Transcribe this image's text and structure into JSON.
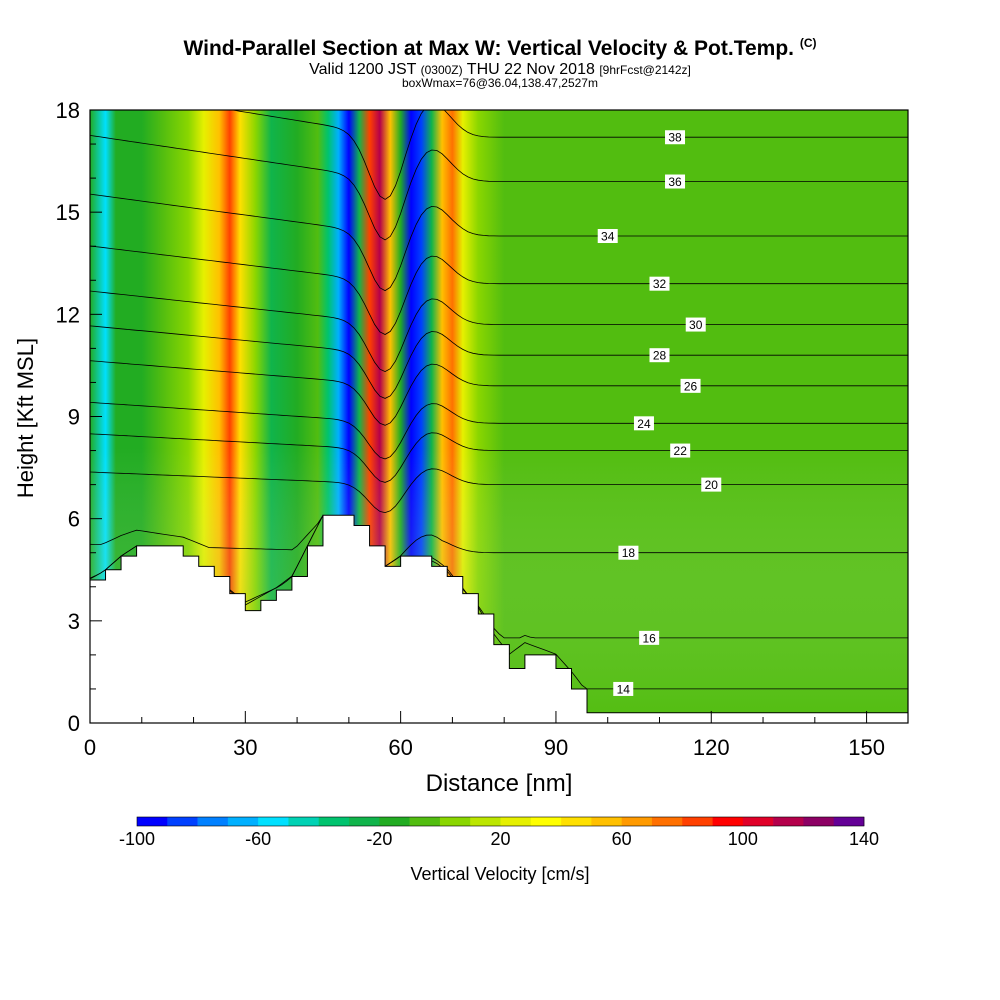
{
  "title": {
    "main": "Wind-Parallel Section at Max W: Vertical Velocity & Pot.Temp.",
    "mark": "(C)",
    "valid_prefix": "Valid 1200 JST",
    "valid_utc": "(0300Z)",
    "valid_date": "THU 22 Nov 2018",
    "forecast": "[9hrFcst@2142z]",
    "box_info": "boxWmax=76@36.04,138.47,2527m"
  },
  "chart_data": {
    "type": "heatmap",
    "xlabel": "Distance [nm]",
    "ylabel": "Height [Kft MSL]",
    "xlim": [
      0,
      158
    ],
    "ylim": [
      0,
      18
    ],
    "xticks": [
      0,
      30,
      60,
      90,
      120,
      150
    ],
    "yticks": [
      0,
      3,
      6,
      9,
      12,
      15,
      18
    ],
    "colorbar": {
      "label": "Vertical Velocity [cm/s]",
      "ticks": [
        -100,
        -60,
        -20,
        20,
        60,
        100,
        140
      ],
      "min": -100,
      "max": 140,
      "step": 10,
      "colors": [
        "#0000ff",
        "#0040ff",
        "#0080ff",
        "#00b0ff",
        "#00e0ff",
        "#00d2b4",
        "#00c36e",
        "#10b44b",
        "#22ac22",
        "#52bd10",
        "#8ad600",
        "#bce600",
        "#e6f000",
        "#ffff00",
        "#ffe000",
        "#ffc000",
        "#ff9a00",
        "#ff7000",
        "#ff4000",
        "#ff0000",
        "#e00028",
        "#b4004b",
        "#8c0064",
        "#640096"
      ]
    },
    "vertical_velocity_columns": [
      {
        "x": 0,
        "w": -20
      },
      {
        "x": 3,
        "w": -60
      },
      {
        "x": 5,
        "w": -20
      },
      {
        "x": 10,
        "w": -15
      },
      {
        "x": 14,
        "w": -10
      },
      {
        "x": 19,
        "w": 0
      },
      {
        "x": 22,
        "w": 20
      },
      {
        "x": 25,
        "w": 50
      },
      {
        "x": 27,
        "w": 80
      },
      {
        "x": 29,
        "w": 40
      },
      {
        "x": 32,
        "w": 0
      },
      {
        "x": 35,
        "w": -25
      },
      {
        "x": 40,
        "w": -15
      },
      {
        "x": 44,
        "w": -10
      },
      {
        "x": 46,
        "w": -40
      },
      {
        "x": 48,
        "w": -70
      },
      {
        "x": 50,
        "w": -95
      },
      {
        "x": 52,
        "w": -30
      },
      {
        "x": 54,
        "w": 80
      },
      {
        "x": 56,
        "w": 110
      },
      {
        "x": 58,
        "w": 50
      },
      {
        "x": 60,
        "w": -20
      },
      {
        "x": 62,
        "w": -100
      },
      {
        "x": 64,
        "w": -90
      },
      {
        "x": 66,
        "w": -30
      },
      {
        "x": 68,
        "w": 50
      },
      {
        "x": 70,
        "w": 70
      },
      {
        "x": 72,
        "w": 20
      },
      {
        "x": 75,
        "w": 0
      },
      {
        "x": 80,
        "w": -10
      },
      {
        "x": 90,
        "w": -5
      },
      {
        "x": 100,
        "w": -10
      },
      {
        "x": 110,
        "w": -5
      },
      {
        "x": 120,
        "w": -10
      },
      {
        "x": 130,
        "w": -5
      },
      {
        "x": 140,
        "w": -10
      },
      {
        "x": 150,
        "w": -10
      },
      {
        "x": 158,
        "w": -10
      }
    ],
    "terrain": [
      {
        "x": 0,
        "h": 4.2
      },
      {
        "x": 3,
        "h": 4.5
      },
      {
        "x": 6,
        "h": 4.9
      },
      {
        "x": 9,
        "h": 5.2
      },
      {
        "x": 18,
        "h": 4.9
      },
      {
        "x": 21,
        "h": 4.6
      },
      {
        "x": 24,
        "h": 4.3
      },
      {
        "x": 27,
        "h": 3.8
      },
      {
        "x": 30,
        "h": 3.3
      },
      {
        "x": 33,
        "h": 3.6
      },
      {
        "x": 36,
        "h": 3.9
      },
      {
        "x": 39,
        "h": 4.3
      },
      {
        "x": 42,
        "h": 5.2
      },
      {
        "x": 45,
        "h": 6.1
      },
      {
        "x": 51,
        "h": 5.8
      },
      {
        "x": 54,
        "h": 5.2
      },
      {
        "x": 57,
        "h": 4.6
      },
      {
        "x": 60,
        "h": 4.9
      },
      {
        "x": 66,
        "h": 4.6
      },
      {
        "x": 69,
        "h": 4.3
      },
      {
        "x": 72,
        "h": 3.8
      },
      {
        "x": 75,
        "h": 3.2
      },
      {
        "x": 78,
        "h": 2.3
      },
      {
        "x": 81,
        "h": 1.6
      },
      {
        "x": 84,
        "h": 2.0
      },
      {
        "x": 90,
        "h": 1.6
      },
      {
        "x": 93,
        "h": 1.0
      },
      {
        "x": 96,
        "h": 0.3
      },
      {
        "x": 158,
        "h": 0.3
      }
    ],
    "isentropes": [
      {
        "theta": 14,
        "label_x": 103,
        "far_h": 1.0
      },
      {
        "theta": 16,
        "label_x": 108,
        "far_h": 2.5
      },
      {
        "theta": 18,
        "label_x": 104,
        "far_h": 5.0
      },
      {
        "theta": 20,
        "label_x": 120,
        "far_h": 7.0
      },
      {
        "theta": 22,
        "label_x": 114,
        "far_h": 8.0
      },
      {
        "theta": 24,
        "label_x": 107,
        "far_h": 8.8
      },
      {
        "theta": 26,
        "label_x": 116,
        "far_h": 9.9
      },
      {
        "theta": 28,
        "label_x": 110,
        "far_h": 10.8
      },
      {
        "theta": 30,
        "label_x": 117,
        "far_h": 11.7
      },
      {
        "theta": 32,
        "label_x": 110,
        "far_h": 12.9
      },
      {
        "theta": 34,
        "label_x": 100,
        "far_h": 14.3
      },
      {
        "theta": 36,
        "label_x": 113,
        "far_h": 15.9
      },
      {
        "theta": 38,
        "label_x": 113,
        "far_h": 17.2
      }
    ]
  }
}
